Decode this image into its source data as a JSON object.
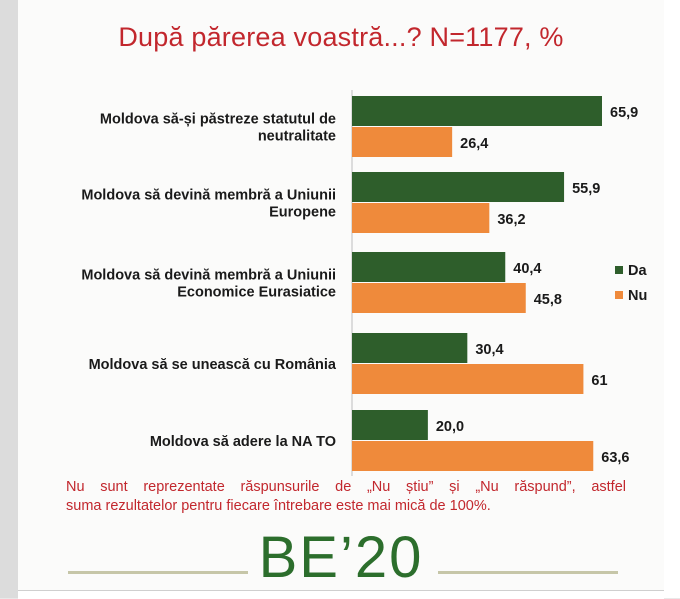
{
  "title": "După părerea voastră...? N=1177, %",
  "chart_data": {
    "type": "bar",
    "orientation": "horizontal",
    "categories": [
      [
        "Moldova să-și păstreze statutul de",
        "neutralitate"
      ],
      [
        "Moldova să devină membră a Uniunii",
        "Europene"
      ],
      [
        "Moldova să devină membră a Uniunii",
        "Economice Eurasiatice"
      ],
      [
        "Moldova să se unească cu România"
      ],
      [
        "Moldova să adere la NA TO"
      ]
    ],
    "series": [
      {
        "name": "Da",
        "color": "#2e5e2b",
        "values": [
          65.9,
          55.9,
          40.4,
          30.4,
          20.0
        ],
        "labels": [
          "65,9",
          "55,9",
          "40,4",
          "30,4",
          "20,0"
        ]
      },
      {
        "name": "Nu",
        "color": "#ef8a3b",
        "values": [
          26.4,
          36.2,
          45.8,
          61,
          63.6
        ],
        "labels": [
          "26,4",
          "36,2",
          "45,8",
          "61",
          "63,6"
        ]
      }
    ],
    "xlim": [
      0,
      70
    ],
    "legend_position": "right",
    "grid": false
  },
  "footnote": [
    "Nu sunt reprezentate răspunsurile de „Nu știu” și „Nu răspund”, astfel",
    "suma rezultatelor pentru fiecare întrebare este mai mică de 100%."
  ],
  "brand": "BE’20",
  "colors": {
    "title": "#c2272d",
    "brand": "#2c6e2c"
  }
}
